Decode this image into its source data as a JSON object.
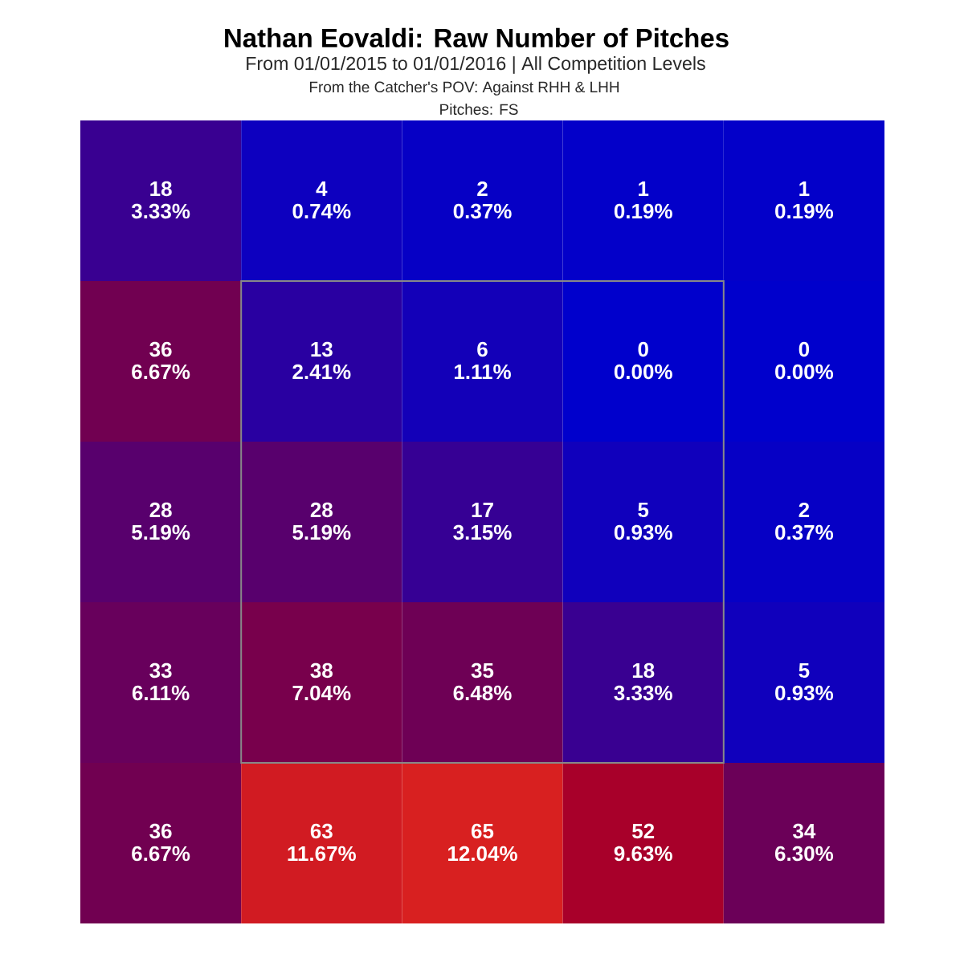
{
  "chart_data": {
    "type": "heatmap",
    "title": "Nathan Eovaldi: Raw Number of Pitches",
    "subtitle": "From 01/01/2015 to 01/01/2016 | All Competition Levels",
    "annotations": [
      "From the Catcher's POV: Against RHH & LHH",
      "Pitches: FS",
      {
        "text": "3.33%"
      },
      {
        "text": "0.74%"
      },
      {
        "text": "0.37%"
      },
      {
        "text": "0.19%"
      },
      {
        "text": "0.19%"
      },
      {
        "text": "6.67%"
      },
      {
        "text": "2.41%"
      },
      {
        "text": "1.11%"
      },
      {
        "text": "0.00%"
      },
      {
        "text": "0.00%"
      },
      {
        "text": "5.19%"
      },
      {
        "text": "5.19%"
      },
      {
        "text": "3.15%"
      },
      {
        "text": "0.93%"
      },
      {
        "text": "0.37%"
      },
      {
        "text": "6.11%"
      },
      {
        "text": "7.04%"
      },
      {
        "text": "6.48%"
      },
      {
        "text": "3.33%"
      },
      {
        "text": "0.93%"
      },
      {
        "text": "6.67%"
      },
      {
        "text": "11.67%"
      },
      {
        "text": "12.04%"
      },
      {
        "text": "9.63%"
      },
      {
        "text": "6.30%"
      }
    ],
    "categories": [
      null,
      null,
      null,
      null,
      null
    ],
    "y_categories": [
      null,
      null,
      null,
      null,
      null
    ],
    "cells": [
      [
        18,
        4,
        2,
        1,
        1
      ],
      [
        36,
        13,
        6,
        0,
        0
      ],
      [
        28,
        28,
        17,
        5,
        2
      ],
      [
        33,
        38,
        35,
        18,
        5
      ],
      [
        36,
        63,
        65,
        52,
        34
      ]
    ],
    "data_labels": true
  }
}
